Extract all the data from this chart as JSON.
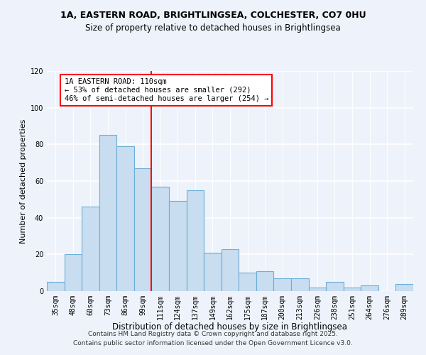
{
  "title1": "1A, EASTERN ROAD, BRIGHTLINGSEA, COLCHESTER, CO7 0HU",
  "title2": "Size of property relative to detached houses in Brightlingsea",
  "xlabel": "Distribution of detached houses by size in Brightlingsea",
  "ylabel": "Number of detached properties",
  "footer1": "Contains HM Land Registry data © Crown copyright and database right 2025.",
  "footer2": "Contains public sector information licensed under the Open Government Licence v3.0.",
  "bar_labels": [
    "35sqm",
    "48sqm",
    "60sqm",
    "73sqm",
    "86sqm",
    "99sqm",
    "111sqm",
    "124sqm",
    "137sqm",
    "149sqm",
    "162sqm",
    "175sqm",
    "187sqm",
    "200sqm",
    "213sqm",
    "226sqm",
    "238sqm",
    "251sqm",
    "264sqm",
    "276sqm",
    "289sqm"
  ],
  "bar_values": [
    5,
    20,
    46,
    85,
    79,
    67,
    57,
    49,
    55,
    21,
    23,
    10,
    11,
    7,
    7,
    2,
    5,
    2,
    3,
    0,
    4
  ],
  "bar_color": "#c9ddf0",
  "bar_edge_color": "#6aaed6",
  "vline_color": "red",
  "vline_index": 6,
  "annotation_title": "1A EASTERN ROAD: 110sqm",
  "annotation_line1": "← 53% of detached houses are smaller (292)",
  "annotation_line2": "46% of semi-detached houses are larger (254) →",
  "annotation_box_color": "white",
  "annotation_box_edge_color": "red",
  "ylim": [
    0,
    120
  ],
  "yticks": [
    0,
    20,
    40,
    60,
    80,
    100,
    120
  ],
  "background_color": "#eef3fb",
  "grid_color": "white",
  "title1_fontsize": 9,
  "title2_fontsize": 8.5,
  "xlabel_fontsize": 8.5,
  "ylabel_fontsize": 8,
  "tick_fontsize": 7,
  "annotation_fontsize": 7.5,
  "footer_fontsize": 6.5
}
